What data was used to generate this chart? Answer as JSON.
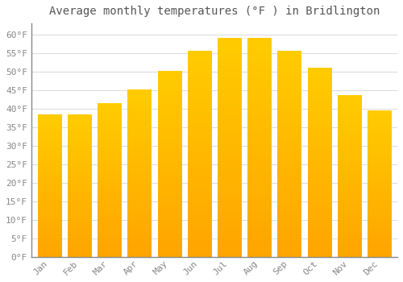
{
  "title": "Average monthly temperatures (°F ) in Bridlington",
  "months": [
    "Jan",
    "Feb",
    "Mar",
    "Apr",
    "May",
    "Jun",
    "Jul",
    "Aug",
    "Sep",
    "Oct",
    "Nov",
    "Dec"
  ],
  "values": [
    38.3,
    38.3,
    41.5,
    45.0,
    50.0,
    55.5,
    59.0,
    59.0,
    55.5,
    51.0,
    43.5,
    39.5
  ],
  "bar_color_top": "#FFCC00",
  "bar_color_bottom": "#FFA500",
  "bar_edge_color": "#FFFFFF",
  "background_color": "#FFFFFF",
  "grid_color": "#DDDDDD",
  "text_color": "#888888",
  "axis_color": "#888888",
  "ylim": [
    0,
    63
  ],
  "yticks": [
    0,
    5,
    10,
    15,
    20,
    25,
    30,
    35,
    40,
    45,
    50,
    55,
    60
  ],
  "title_fontsize": 10,
  "tick_fontsize": 8
}
